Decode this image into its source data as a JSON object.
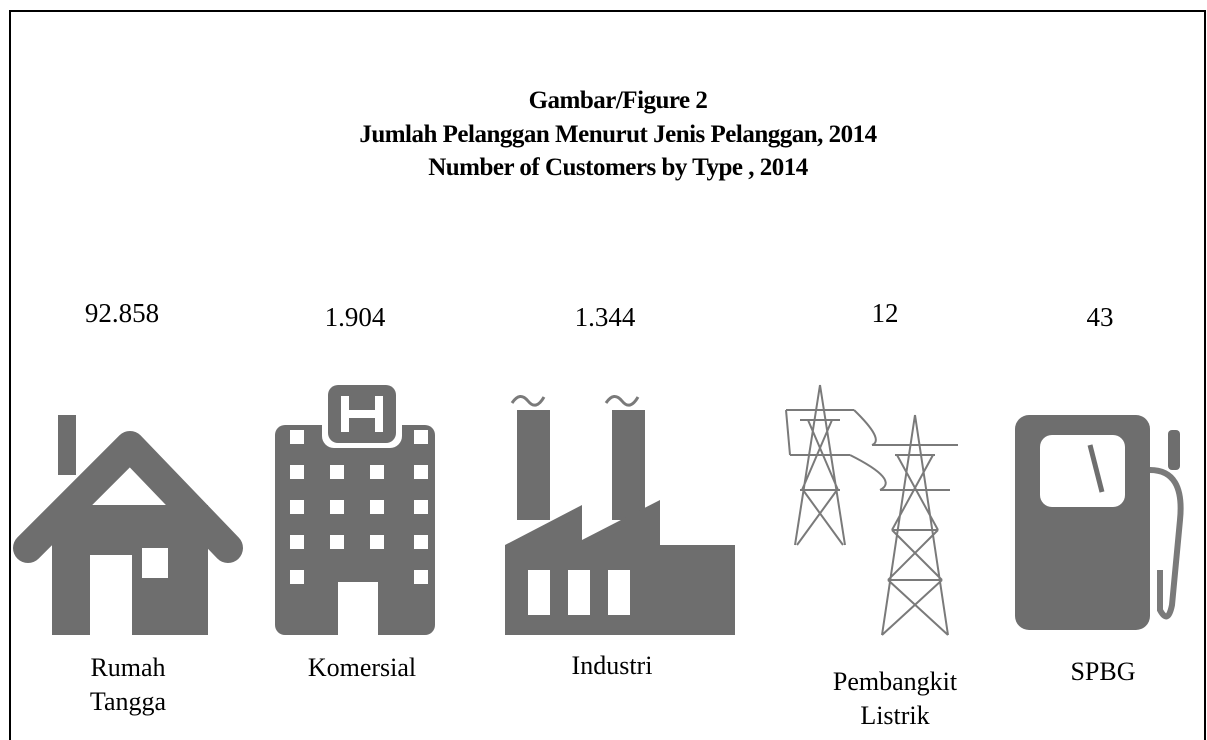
{
  "figure": {
    "title_lines": [
      "Gambar/Figure 2",
      "Jumlah Pelanggan  Menurut Jenis Pelanggan, 2014",
      "Number of  Customers by Type , 2014"
    ],
    "items": [
      {
        "value": "92.858",
        "label": [
          "Rumah",
          "Tangga"
        ]
      },
      {
        "value": "1.904",
        "label": [
          "Komersial"
        ]
      },
      {
        "value": "1.344",
        "label": [
          "Industri"
        ]
      },
      {
        "value": "12",
        "label": [
          "Pembangkit",
          "Listrik"
        ]
      },
      {
        "value": "43",
        "label": [
          "SPBG"
        ]
      }
    ]
  }
}
